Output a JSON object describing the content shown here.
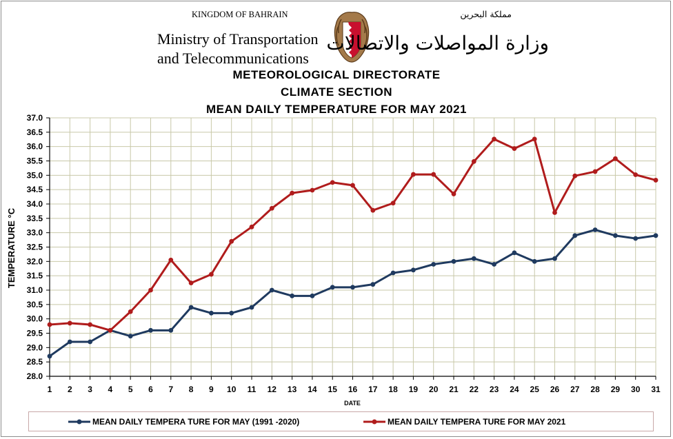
{
  "header": {
    "country": "KINGDOM OF BAHRAIN",
    "ministry_line1": "Ministry of Transportation",
    "ministry_line2": "and Telecommunications",
    "arabic_country": "مملكة البحرين",
    "arabic_ministry": "وزارة المواصلات والاتصالات",
    "title_line1": "METEOROLOGICAL  DIRECTORATE",
    "title_line2": "CLIMATE SECTION",
    "title_line3": "MEAN DAILY TEMPERATURE  FOR MAY 2021"
  },
  "colors": {
    "series_normal": "#1f3a5f",
    "series_2021": "#b01c1c",
    "grid": "#c8c8a8",
    "emblem_red": "#c8102e"
  },
  "chart_data": {
    "type": "line",
    "title": "MEAN DAILY TEMPERATURE  FOR MAY 2021",
    "xlabel": "DATE",
    "ylabel": "TEMPERATURE °C",
    "x": [
      1,
      2,
      3,
      4,
      5,
      6,
      7,
      8,
      9,
      10,
      11,
      12,
      13,
      14,
      15,
      16,
      17,
      18,
      19,
      20,
      21,
      22,
      23,
      24,
      25,
      26,
      27,
      28,
      29,
      30,
      31
    ],
    "ylim": [
      28.0,
      37.0
    ],
    "ytick_step": 0.5,
    "grid": true,
    "legend_position": "bottom",
    "series": [
      {
        "name": "MEAN DAILY TEMPERA TURE FOR MAY (1991 -2020)",
        "color": "#1f3a5f",
        "values": [
          28.7,
          29.2,
          29.2,
          29.6,
          29.4,
          29.6,
          29.6,
          30.4,
          30.2,
          30.2,
          30.4,
          31.0,
          30.8,
          30.8,
          31.1,
          31.1,
          31.2,
          31.6,
          31.7,
          31.9,
          32.0,
          32.1,
          31.9,
          32.3,
          32.0,
          32.1,
          32.9,
          33.1,
          32.9,
          32.8,
          32.9
        ]
      },
      {
        "name": "MEAN DAILY TEMPERA TURE FOR MAY 2021",
        "color": "#b01c1c",
        "values": [
          29.8,
          29.85,
          29.8,
          29.6,
          30.25,
          31.0,
          32.05,
          31.25,
          31.55,
          32.7,
          33.2,
          33.85,
          34.38,
          34.48,
          34.75,
          34.65,
          33.78,
          34.03,
          35.03,
          35.03,
          34.35,
          35.48,
          36.26,
          35.93,
          36.26,
          33.7,
          34.98,
          35.13,
          35.58,
          35.02,
          34.83
        ]
      }
    ]
  }
}
